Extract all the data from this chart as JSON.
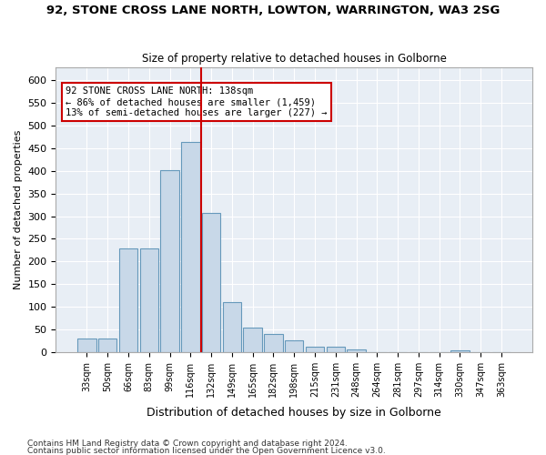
{
  "title": "92, STONE CROSS LANE NORTH, LOWTON, WARRINGTON, WA3 2SG",
  "subtitle": "Size of property relative to detached houses in Golborne",
  "xlabel": "Distribution of detached houses by size in Golborne",
  "ylabel": "Number of detached properties",
  "bar_color": "#c8d8e8",
  "bar_edge_color": "#6699bb",
  "background_color": "#e8eef5",
  "categories": [
    "33sqm",
    "50sqm",
    "66sqm",
    "83sqm",
    "99sqm",
    "116sqm",
    "132sqm",
    "149sqm",
    "165sqm",
    "182sqm",
    "198sqm",
    "215sqm",
    "231sqm",
    "248sqm",
    "264sqm",
    "281sqm",
    "297sqm",
    "314sqm",
    "330sqm",
    "347sqm",
    "363sqm"
  ],
  "values": [
    30,
    30,
    228,
    228,
    402,
    465,
    307,
    110,
    53,
    40,
    26,
    12,
    11,
    5,
    0,
    0,
    0,
    0,
    3,
    0,
    0
  ],
  "property_line_x": 5.5,
  "property_line_color": "#cc0000",
  "annotation_text": "92 STONE CROSS LANE NORTH: 138sqm\n← 86% of detached houses are smaller (1,459)\n13% of semi-detached houses are larger (227) →",
  "annotation_box_color": "#ffffff",
  "annotation_box_edge_color": "#cc0000",
  "ylim": [
    0,
    630
  ],
  "yticks": [
    0,
    50,
    100,
    150,
    200,
    250,
    300,
    350,
    400,
    450,
    500,
    550,
    600
  ],
  "footnote1": "Contains HM Land Registry data © Crown copyright and database right 2024.",
  "footnote2": "Contains public sector information licensed under the Open Government Licence v3.0."
}
